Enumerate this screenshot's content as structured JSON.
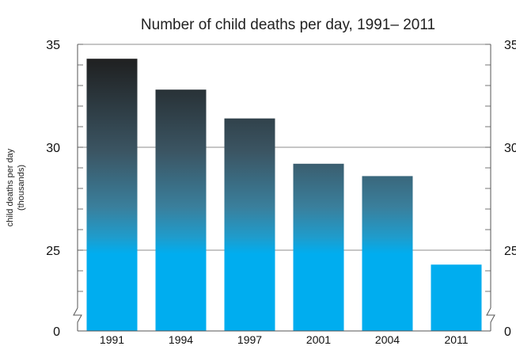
{
  "chart_data": {
    "type": "bar",
    "title": "Number of child deaths per day, 1991– 2011",
    "ylabel_line1": "child deaths per day",
    "ylabel_line2": "(thousands)",
    "xlabel": "",
    "categories": [
      "1991",
      "1994",
      "1997",
      "2001",
      "2004",
      "2011"
    ],
    "values": [
      34.3,
      32.8,
      31.4,
      29.2,
      28.6,
      24.3
    ],
    "ylim": [
      0,
      35
    ],
    "y_axis_break": [
      0,
      22.5
    ],
    "y_tick_labels": [
      "35",
      "30",
      "25",
      "0"
    ],
    "y_tick_values": [
      35,
      30,
      25,
      0
    ],
    "right_axis": true,
    "grid": "horizontal at labeled ticks",
    "colors": {
      "bar_top": "#1e1e1e",
      "bar_mid": "#3a6f86",
      "bar_bottom": "#00adef",
      "axis": "#555555",
      "grid": "#666666"
    }
  }
}
